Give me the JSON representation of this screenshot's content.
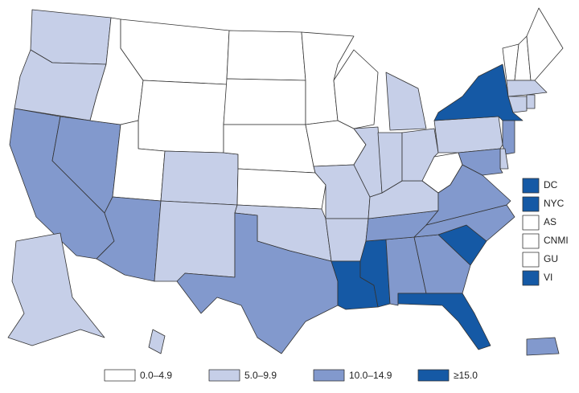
{
  "legend": [
    {
      "label": "0.0–4.9",
      "color": "#ffffff"
    },
    {
      "label": "5.0–9.9",
      "color": "#c6cfe8"
    },
    {
      "label": "10.0–14.9",
      "color": "#8299cd"
    },
    {
      "label": "≥15.0",
      "color": "#1559a5"
    }
  ],
  "states": [
    1,
    1,
    2,
    2,
    0,
    0,
    0,
    0,
    1,
    2,
    1,
    0,
    0,
    0,
    0,
    1,
    2,
    0,
    0,
    0,
    1,
    1,
    3,
    3,
    2,
    2,
    3,
    3,
    2,
    2,
    1,
    1,
    1,
    1,
    1,
    0,
    2,
    1,
    3,
    0,
    0,
    0,
    1,
    1,
    1,
    2,
    1,
    2,
    1,
    1,
    2
  ],
  "territories": [
    {
      "label": "DC",
      "class": 3
    },
    {
      "label": "NYC",
      "class": 3
    },
    {
      "label": "AS",
      "class": 0
    },
    {
      "label": "CNMI",
      "class": 0
    },
    {
      "label": "GU",
      "class": 0
    },
    {
      "label": "VI",
      "class": 3
    }
  ]
}
